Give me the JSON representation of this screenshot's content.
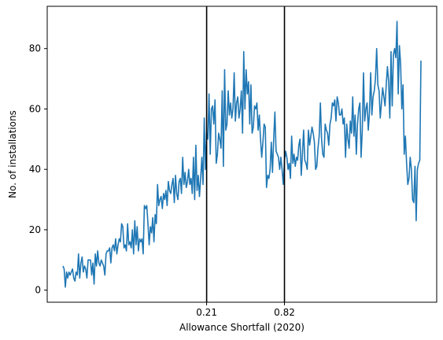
{
  "chart_data": {
    "type": "line",
    "title": "",
    "xlabel": "Allowance Shortfall (2020)",
    "ylabel": "No. of installations",
    "ylim": [
      -4,
      94
    ],
    "yticks": [
      0,
      20,
      40,
      60,
      80
    ],
    "xticks": [
      {
        "label": "0.21",
        "index": 120
      },
      {
        "label": "0.82",
        "index": 185
      }
    ],
    "vlines": [
      {
        "label": "0.21",
        "index": 120
      },
      {
        "label": "0.82",
        "index": 185
      }
    ],
    "grid": false,
    "colors": {
      "series": "#1f77b4",
      "vline": "#000000",
      "axis": "#000000",
      "background": "#ffffff"
    },
    "series": [
      {
        "name": "installations",
        "values": [
          8,
          7,
          1,
          6,
          4,
          6,
          5,
          6,
          7,
          4,
          3,
          6,
          5,
          12,
          4,
          9,
          11,
          6,
          8,
          7,
          4,
          10,
          10,
          10,
          5,
          9,
          2,
          12,
          8,
          13,
          9,
          8,
          10,
          9,
          8,
          5,
          12,
          13,
          13,
          14,
          9,
          14,
          15,
          13,
          17,
          12,
          15,
          17,
          16,
          22,
          21,
          14,
          15,
          13,
          22,
          15,
          16,
          14,
          20,
          12,
          23,
          15,
          21,
          13,
          17,
          16,
          17,
          12,
          28,
          27,
          28,
          22,
          15,
          21,
          19,
          24,
          16,
          25,
          22,
          35,
          28,
          30,
          31,
          27,
          32,
          30,
          33,
          28,
          36,
          33,
          32,
          35,
          37,
          29,
          38,
          32,
          30,
          36,
          37,
          32,
          44,
          35,
          39,
          34,
          36,
          40,
          35,
          37,
          32,
          44,
          30,
          48,
          33,
          38,
          31,
          37,
          44,
          35,
          57,
          40,
          52,
          50,
          65,
          45,
          60,
          61,
          55,
          63,
          42,
          45,
          52,
          50,
          47,
          66,
          41,
          73,
          53,
          55,
          66,
          58,
          62,
          57,
          60,
          72,
          56,
          62,
          64,
          57,
          60,
          66,
          52,
          79,
          60,
          73,
          65,
          69,
          55,
          68,
          52,
          54,
          61,
          60,
          62,
          53,
          58,
          50,
          44,
          49,
          55,
          54,
          34,
          38,
          37,
          40,
          49,
          39,
          50,
          59,
          46,
          45,
          44,
          40,
          44,
          40,
          35,
          43,
          46,
          44,
          40,
          42,
          37,
          51,
          42,
          45,
          41,
          44,
          43,
          48,
          50,
          38,
          45,
          53,
          43,
          42,
          40,
          53,
          48,
          51,
          54,
          52,
          49,
          40,
          41,
          47,
          51,
          62,
          50,
          45,
          44,
          55,
          53,
          52,
          48,
          55,
          57,
          62,
          61,
          63,
          56,
          64,
          62,
          58,
          58,
          60,
          55,
          57,
          44,
          55,
          50,
          47,
          56,
          52,
          64,
          51,
          58,
          45,
          55,
          60,
          62,
          44,
          53,
          72,
          56,
          60,
          62,
          53,
          59,
          72,
          58,
          64,
          66,
          70,
          80,
          68,
          66,
          57,
          62,
          67,
          64,
          61,
          68,
          74,
          69,
          57,
          79,
          61,
          78,
          80,
          77,
          89,
          65,
          81,
          75,
          60,
          68,
          45,
          51,
          42,
          35,
          37,
          44,
          40,
          30,
          29,
          41,
          23,
          40,
          42,
          43,
          76
        ]
      }
    ]
  }
}
